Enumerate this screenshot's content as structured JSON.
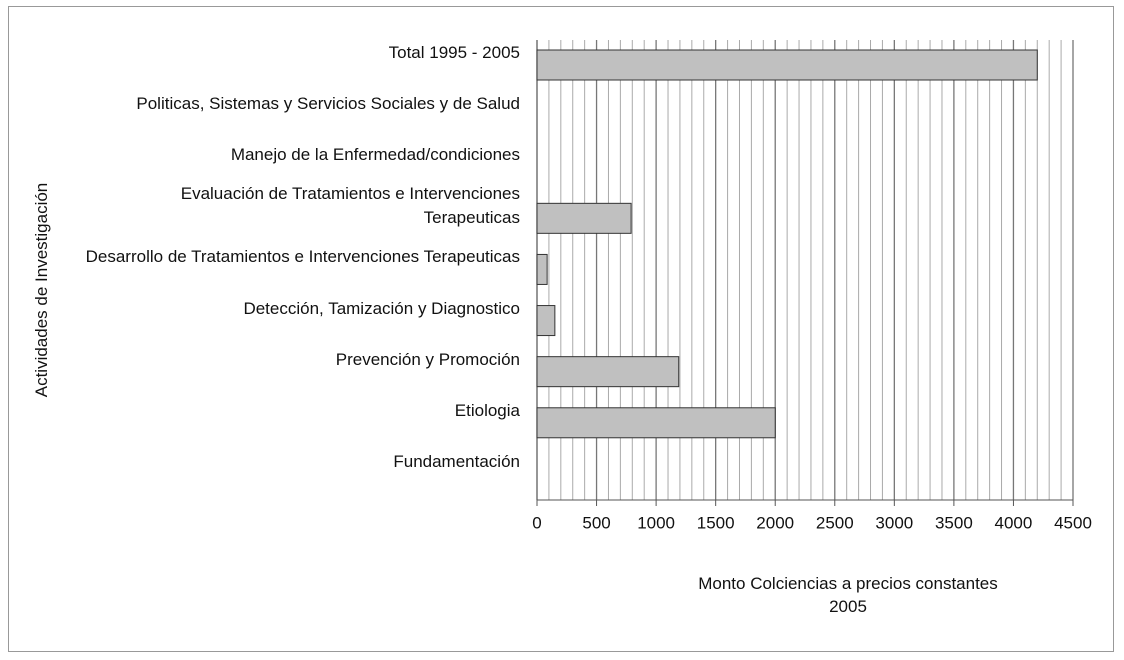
{
  "chart_data": {
    "type": "hbar",
    "y_label": "Actividades de Investigación",
    "x_label": "Monto Colciencias a precios constantes 2005",
    "categories": [
      "Total 1995 - 2005",
      "Politicas, Sistemas y  Servicios Sociales y de Salud",
      "Manejo de la Enfermedad/condiciones",
      "Evaluación de Tratamientos e Intervenciones Terapeuticas",
      "Desarrollo de Tratamientos e Intervenciones Terapeuticas",
      "Detección, Tamización y Diagnostico",
      "Prevención y Promoción",
      "Etiologia",
      "Fundamentación"
    ],
    "values": [
      4200,
      0,
      0,
      790,
      85,
      150,
      1190,
      2000,
      0
    ],
    "color": "#c0c0c0",
    "xlim": [
      0,
      4500
    ],
    "xticks": [
      0,
      500,
      1000,
      1500,
      2000,
      2500,
      3000,
      3500,
      4000,
      4500
    ],
    "grid": true
  }
}
